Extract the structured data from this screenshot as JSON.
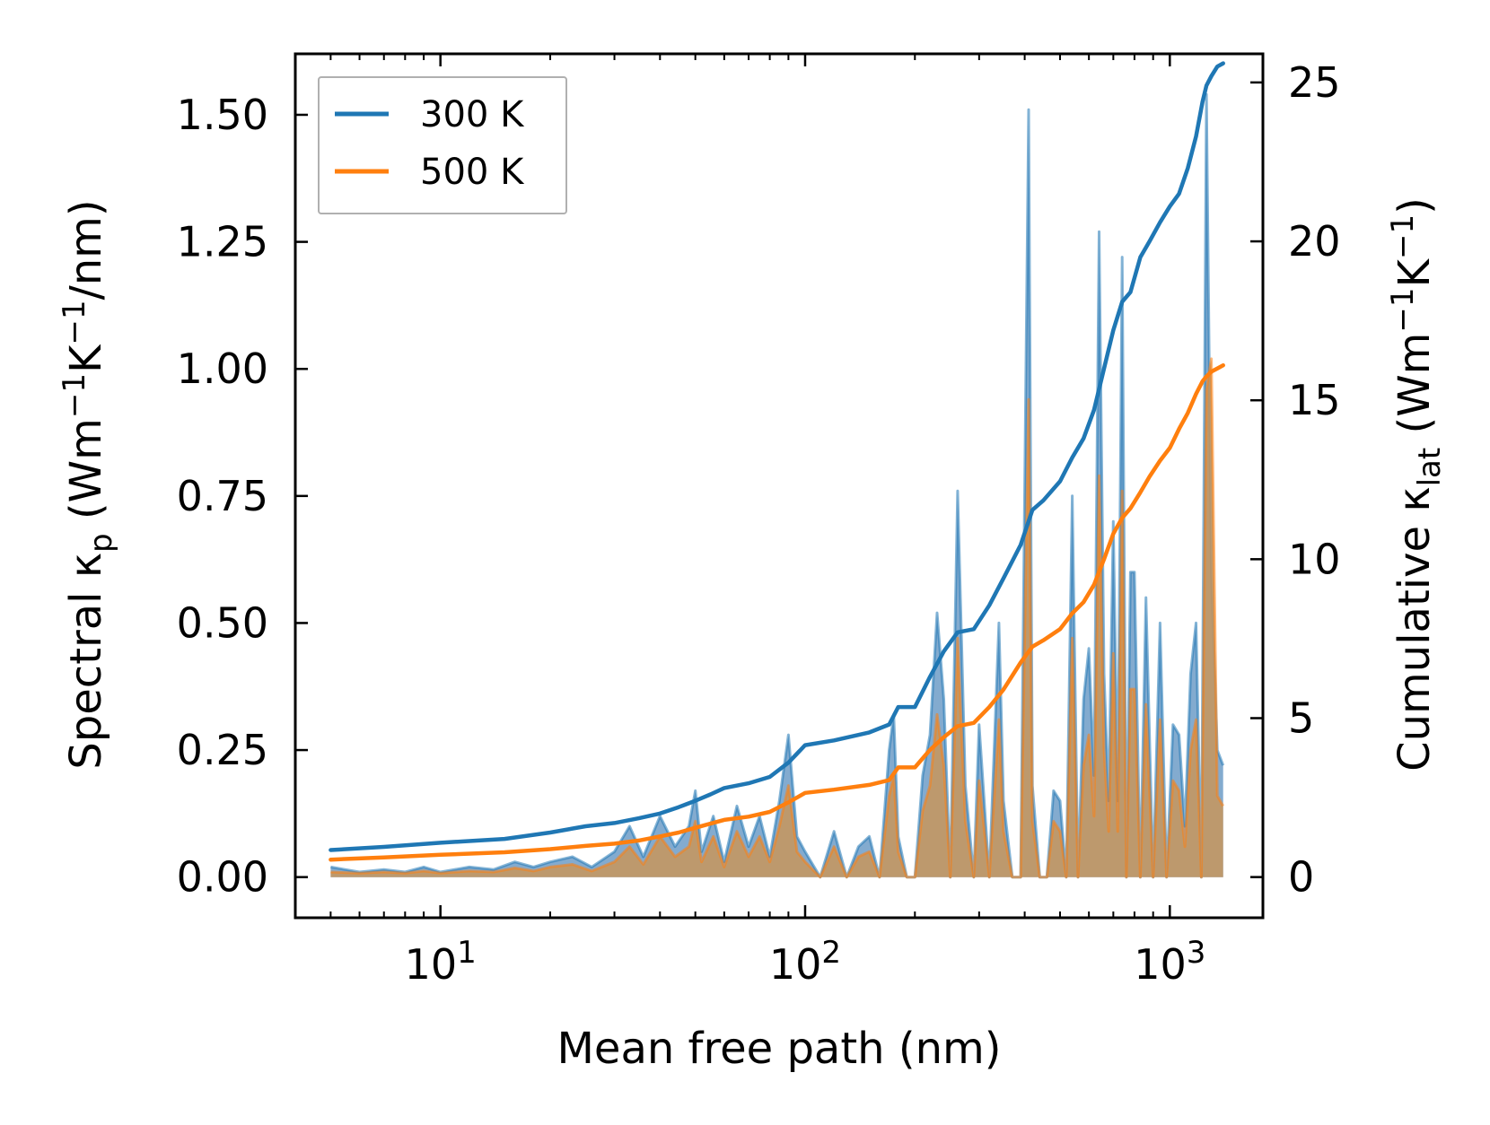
{
  "chart_data": {
    "type": "line",
    "title": "",
    "xlabel": "Mean free path (nm)",
    "ylabel_left": {
      "main": "Spectral κ",
      "sub": "p",
      "unit_open": " (Wm",
      "exp1": "−1",
      "unit_mid": "K",
      "exp2": "−1",
      "unit_close": "/nm)"
    },
    "ylabel_right": {
      "main": "Cumulative κ",
      "sub": "lat",
      "unit_open": " (Wm",
      "exp1": "−1",
      "unit_mid": "K",
      "exp2": "−1",
      "unit_close": ")"
    },
    "xscale": "log",
    "xlim": [
      4,
      1800
    ],
    "ylim_left": [
      -0.08,
      1.62
    ],
    "ylim_right": [
      -1.28,
      25.9
    ],
    "x_ticks": [
      {
        "value": 10,
        "base": "10",
        "exp": "1"
      },
      {
        "value": 100,
        "base": "10",
        "exp": "2"
      },
      {
        "value": 1000,
        "base": "10",
        "exp": "3"
      }
    ],
    "y_left_ticks": [
      {
        "value": 0.0,
        "label": "0.00"
      },
      {
        "value": 0.25,
        "label": "0.25"
      },
      {
        "value": 0.5,
        "label": "0.50"
      },
      {
        "value": 0.75,
        "label": "0.75"
      },
      {
        "value": 1.0,
        "label": "1.00"
      },
      {
        "value": 1.25,
        "label": "1.25"
      },
      {
        "value": 1.5,
        "label": "1.50"
      }
    ],
    "y_right_ticks": [
      {
        "value": 0,
        "label": "0"
      },
      {
        "value": 5,
        "label": "5"
      },
      {
        "value": 10,
        "label": "10"
      },
      {
        "value": 15,
        "label": "15"
      },
      {
        "value": 20,
        "label": "20"
      },
      {
        "value": 25,
        "label": "25"
      }
    ],
    "legend": {
      "position": "top-left",
      "entries": [
        {
          "name": "300 K",
          "color": "#1f77b4"
        },
        {
          "name": "500 K",
          "color": "#ff7f0e"
        }
      ]
    },
    "series": [
      {
        "name": "300 K",
        "color": "#1f77b4",
        "axis": "left",
        "kind": "spectral",
        "x": [
          5,
          6,
          7,
          8,
          9,
          10,
          12,
          14,
          16,
          18,
          20,
          23,
          26,
          30,
          33,
          36,
          40,
          44,
          48,
          50,
          52,
          56,
          60,
          65,
          70,
          75,
          80,
          85,
          90,
          95,
          100,
          110,
          120,
          130,
          140,
          150,
          160,
          170,
          175,
          180,
          190,
          200,
          210,
          220,
          230,
          240,
          250,
          262,
          275,
          290,
          300,
          320,
          340,
          350,
          370,
          390,
          410,
          420,
          440,
          460,
          480,
          500,
          520,
          540,
          560,
          580,
          600,
          620,
          640,
          660,
          680,
          700,
          720,
          740,
          760,
          780,
          800,
          830,
          860,
          900,
          940,
          980,
          1020,
          1060,
          1100,
          1140,
          1180,
          1220,
          1260,
          1300,
          1350,
          1400
        ],
        "values": [
          0.02,
          0.01,
          0.015,
          0.01,
          0.02,
          0.01,
          0.02,
          0.015,
          0.03,
          0.02,
          0.03,
          0.04,
          0.02,
          0.05,
          0.1,
          0.04,
          0.12,
          0.06,
          0.1,
          0.17,
          0.05,
          0.12,
          0.03,
          0.14,
          0.06,
          0.12,
          0.04,
          0.15,
          0.28,
          0.08,
          0.05,
          0.0,
          0.09,
          0.0,
          0.06,
          0.08,
          0.0,
          0.25,
          0.32,
          0.08,
          0.0,
          0.0,
          0.2,
          0.28,
          0.52,
          0.35,
          0.0,
          0.76,
          0.18,
          0.0,
          0.3,
          0.0,
          0.5,
          0.15,
          0.0,
          0.0,
          1.51,
          0.18,
          0.0,
          0.0,
          0.17,
          0.15,
          0.0,
          0.75,
          0.0,
          0.35,
          0.45,
          0.2,
          1.27,
          0.4,
          0.15,
          0.7,
          0.15,
          1.22,
          0.0,
          0.6,
          0.6,
          0.0,
          0.55,
          0.0,
          0.5,
          0.0,
          0.3,
          0.28,
          0.1,
          0.4,
          0.5,
          0.0,
          1.54,
          0.6,
          0.25,
          0.22
        ]
      },
      {
        "name": "500 K",
        "color": "#ff7f0e",
        "axis": "left",
        "kind": "spectral",
        "x": [
          5,
          6,
          7,
          8,
          9,
          10,
          12,
          14,
          16,
          18,
          20,
          23,
          26,
          30,
          33,
          36,
          40,
          44,
          48,
          50,
          52,
          56,
          60,
          65,
          70,
          75,
          80,
          85,
          90,
          95,
          100,
          110,
          120,
          130,
          140,
          150,
          160,
          170,
          175,
          180,
          190,
          200,
          210,
          220,
          230,
          240,
          250,
          262,
          275,
          290,
          300,
          320,
          340,
          350,
          370,
          390,
          410,
          420,
          440,
          460,
          480,
          500,
          520,
          540,
          560,
          580,
          600,
          620,
          640,
          660,
          680,
          700,
          720,
          740,
          760,
          780,
          800,
          830,
          860,
          900,
          940,
          980,
          1020,
          1060,
          1100,
          1140,
          1180,
          1220,
          1260,
          1300,
          1350,
          1400
        ],
        "values": [
          0.01,
          0.008,
          0.01,
          0.008,
          0.012,
          0.008,
          0.012,
          0.01,
          0.018,
          0.012,
          0.02,
          0.025,
          0.012,
          0.03,
          0.06,
          0.025,
          0.08,
          0.04,
          0.06,
          0.11,
          0.03,
          0.08,
          0.02,
          0.09,
          0.04,
          0.08,
          0.03,
          0.1,
          0.18,
          0.05,
          0.03,
          0.0,
          0.06,
          0.0,
          0.04,
          0.05,
          0.0,
          0.16,
          0.2,
          0.05,
          0.0,
          0.0,
          0.13,
          0.18,
          0.32,
          0.22,
          0.0,
          0.47,
          0.11,
          0.0,
          0.19,
          0.0,
          0.31,
          0.09,
          0.0,
          0.0,
          0.94,
          0.11,
          0.0,
          0.0,
          0.11,
          0.09,
          0.0,
          0.47,
          0.0,
          0.22,
          0.28,
          0.12,
          0.79,
          0.25,
          0.09,
          0.44,
          0.09,
          0.76,
          0.0,
          0.37,
          0.37,
          0.0,
          0.34,
          0.0,
          0.31,
          0.0,
          0.19,
          0.17,
          0.06,
          0.25,
          0.31,
          0.0,
          0.96,
          1.02,
          0.16,
          0.14
        ]
      },
      {
        "name": "300 K cumulative",
        "color": "#1f77b4",
        "axis": "right",
        "kind": "cumulative",
        "x": [
          5,
          7,
          10,
          15,
          20,
          25,
          30,
          35,
          40,
          45,
          50,
          55,
          60,
          70,
          80,
          90,
          100,
          120,
          150,
          170,
          180,
          200,
          220,
          240,
          262,
          290,
          320,
          350,
          390,
          420,
          450,
          500,
          540,
          580,
          620,
          660,
          700,
          740,
          780,
          830,
          880,
          940,
          1000,
          1060,
          1120,
          1180,
          1230,
          1260,
          1300,
          1350,
          1400
        ],
        "values": [
          0.85,
          0.95,
          1.08,
          1.2,
          1.4,
          1.6,
          1.7,
          1.85,
          2.0,
          2.2,
          2.4,
          2.6,
          2.8,
          2.95,
          3.15,
          3.6,
          4.15,
          4.3,
          4.55,
          4.8,
          5.35,
          5.35,
          6.3,
          7.1,
          7.7,
          7.8,
          8.55,
          9.4,
          10.45,
          11.55,
          11.85,
          12.45,
          13.2,
          13.8,
          14.7,
          16.0,
          17.2,
          18.1,
          18.4,
          19.5,
          20.0,
          20.6,
          21.1,
          21.5,
          22.3,
          23.3,
          24.4,
          24.9,
          25.2,
          25.5,
          25.6
        ]
      },
      {
        "name": "500 K cumulative",
        "color": "#ff7f0e",
        "axis": "right",
        "kind": "cumulative",
        "x": [
          5,
          7,
          10,
          15,
          20,
          25,
          30,
          35,
          40,
          45,
          50,
          55,
          60,
          70,
          80,
          90,
          100,
          120,
          150,
          170,
          180,
          200,
          220,
          240,
          262,
          290,
          320,
          350,
          390,
          420,
          450,
          500,
          540,
          580,
          620,
          660,
          700,
          740,
          780,
          830,
          880,
          940,
          1000,
          1060,
          1120,
          1180,
          1230,
          1260,
          1300,
          1350,
          1400
        ],
        "values": [
          0.55,
          0.62,
          0.7,
          0.78,
          0.88,
          0.98,
          1.05,
          1.15,
          1.28,
          1.4,
          1.55,
          1.68,
          1.8,
          1.9,
          2.05,
          2.35,
          2.65,
          2.75,
          2.9,
          3.05,
          3.45,
          3.45,
          4.0,
          4.4,
          4.75,
          4.85,
          5.35,
          5.9,
          6.75,
          7.25,
          7.45,
          7.8,
          8.3,
          8.65,
          9.2,
          10.0,
          10.8,
          11.3,
          11.6,
          12.1,
          12.6,
          13.1,
          13.5,
          14.1,
          14.6,
          15.2,
          15.6,
          15.75,
          15.9,
          16.0,
          16.1
        ]
      }
    ]
  }
}
